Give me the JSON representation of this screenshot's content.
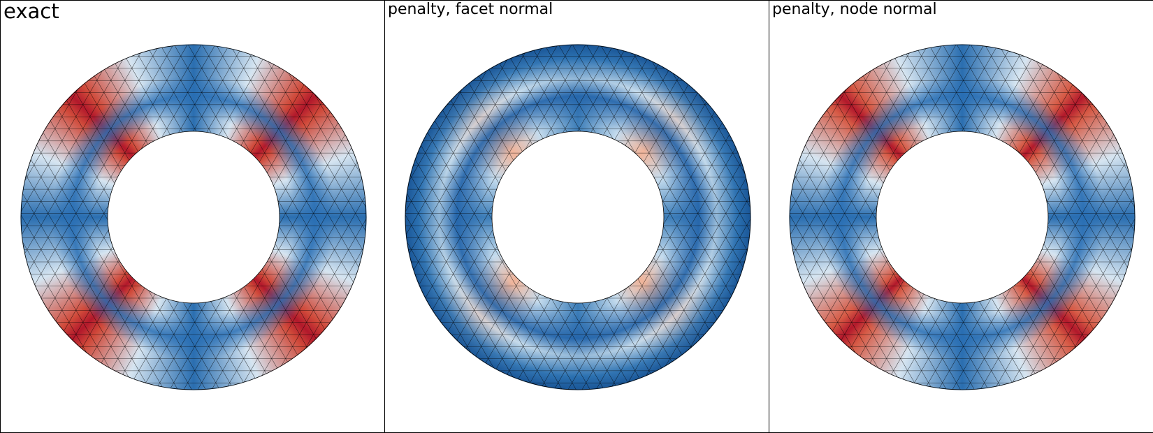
{
  "panels": [
    {
      "title": "exact"
    },
    {
      "title": "penalty, facet normal"
    },
    {
      "title": "penalty, node normal"
    }
  ]
}
